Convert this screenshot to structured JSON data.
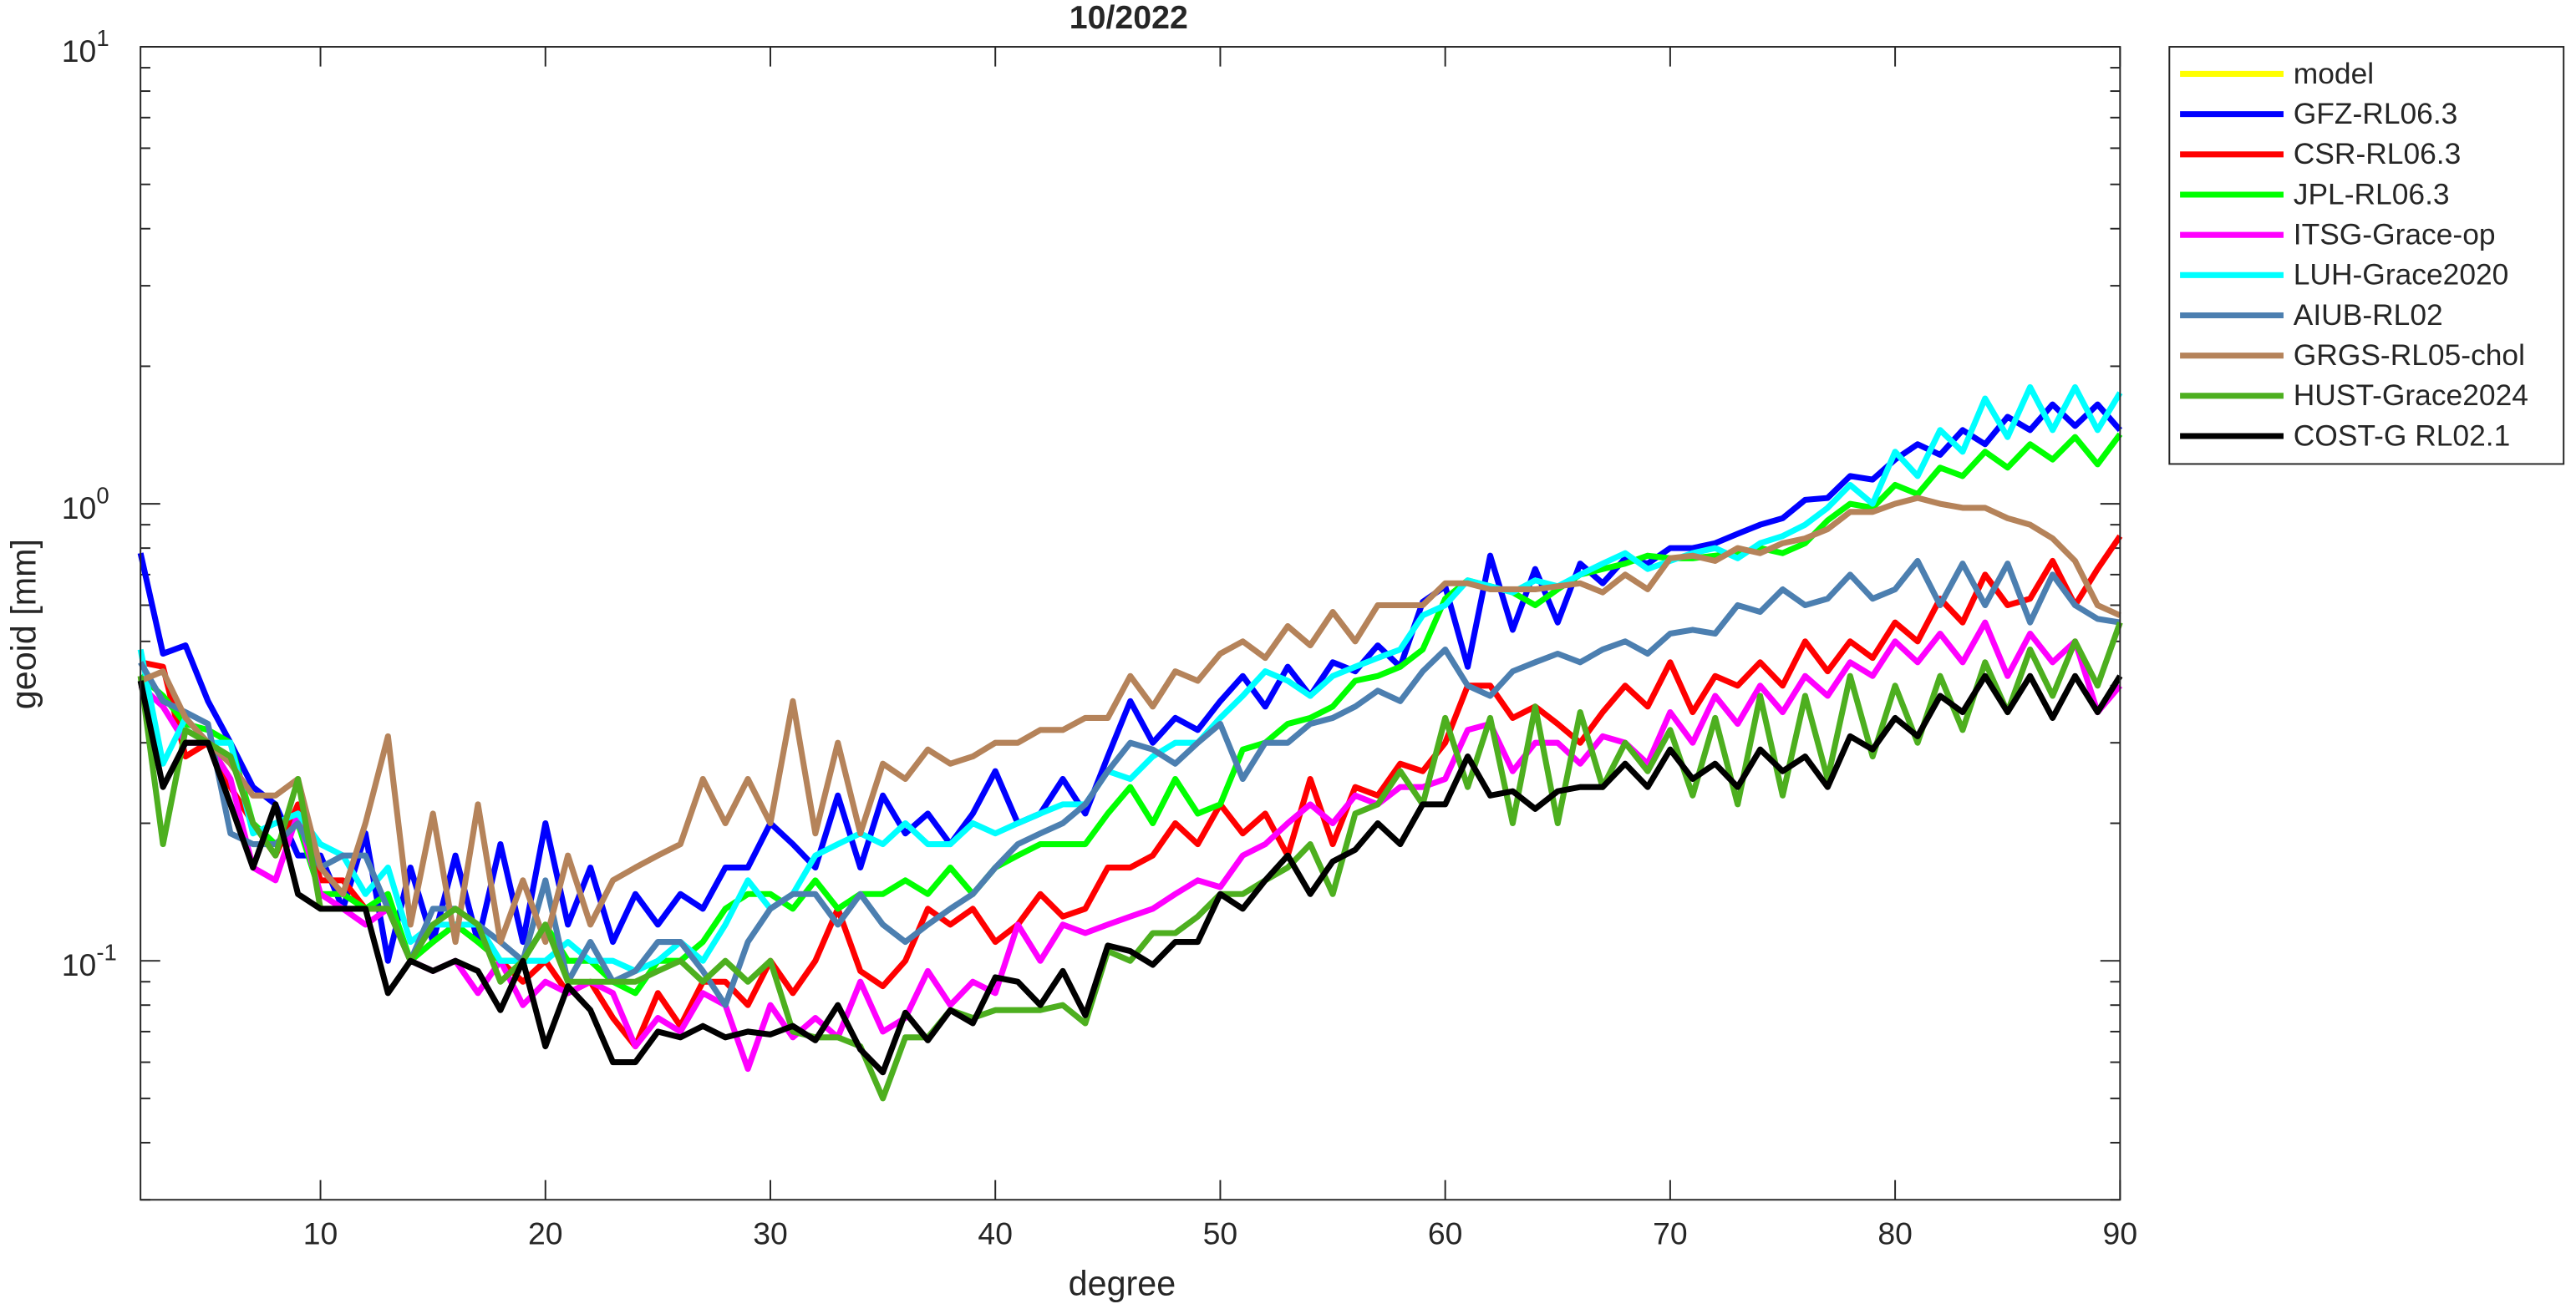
{
  "chart_data": {
    "type": "line",
    "title": "10/2022",
    "xlabel": "degree",
    "ylabel": "geoid [mm]",
    "log_y": true,
    "grid": false,
    "legend": "outside-right-top",
    "xlim": [
      2,
      90
    ],
    "xticks": [
      10,
      20,
      30,
      40,
      50,
      60,
      70,
      80,
      90
    ],
    "ylim": [
      0.03,
      10
    ],
    "yticks": [
      {
        "value": 10,
        "label": "10^1"
      },
      {
        "value": 1,
        "label": "10^0"
      },
      {
        "value": 0.1,
        "label": "10^-1"
      }
    ],
    "x": [
      2,
      3,
      4,
      5,
      6,
      7,
      8,
      9,
      10,
      11,
      12,
      13,
      14,
      15,
      16,
      17,
      18,
      19,
      20,
      21,
      22,
      23,
      24,
      25,
      26,
      27,
      28,
      29,
      30,
      31,
      32,
      33,
      34,
      35,
      36,
      37,
      38,
      39,
      40,
      41,
      42,
      43,
      44,
      45,
      46,
      47,
      48,
      49,
      50,
      51,
      52,
      53,
      54,
      55,
      56,
      57,
      58,
      59,
      60,
      61,
      62,
      63,
      64,
      65,
      66,
      67,
      68,
      69,
      70,
      71,
      72,
      73,
      74,
      75,
      76,
      77,
      78,
      79,
      80,
      81,
      82,
      83,
      84,
      85,
      86,
      87,
      88,
      89,
      90
    ],
    "series": [
      {
        "name": "model",
        "color": "#ffff00",
        "values": [
          null,
          null,
          null,
          null,
          null,
          null,
          null,
          null,
          null,
          null,
          null,
          null,
          null,
          null,
          null,
          null,
          null,
          null,
          null,
          null,
          null,
          null,
          null,
          null,
          null,
          null,
          null,
          null,
          null,
          null,
          null,
          null,
          null,
          null,
          null,
          null,
          null,
          null,
          null,
          null,
          null,
          null,
          null,
          null,
          null,
          null,
          null,
          null,
          null,
          null,
          null,
          null,
          null,
          null,
          null,
          null,
          null,
          null,
          null,
          null,
          null,
          null,
          null,
          null,
          null,
          null,
          null,
          null,
          null,
          null,
          null,
          null,
          null,
          null,
          null,
          null,
          null,
          null,
          null,
          null,
          null,
          null,
          null,
          null,
          null,
          null,
          null,
          null,
          null
        ]
      },
      {
        "name": "GFZ-RL06.3",
        "color": "#0000ff",
        "values": [
          0.78,
          0.47,
          0.49,
          0.37,
          0.3,
          0.24,
          0.22,
          0.17,
          0.17,
          0.13,
          0.19,
          0.1,
          0.16,
          0.11,
          0.17,
          0.11,
          0.18,
          0.11,
          0.2,
          0.12,
          0.16,
          0.11,
          0.14,
          0.12,
          0.14,
          0.13,
          0.16,
          0.16,
          0.2,
          0.18,
          0.16,
          0.23,
          0.16,
          0.23,
          0.19,
          0.21,
          0.18,
          0.21,
          0.26,
          0.2,
          0.21,
          0.25,
          0.21,
          0.28,
          0.37,
          0.3,
          0.34,
          0.32,
          0.37,
          0.42,
          0.36,
          0.44,
          0.38,
          0.45,
          0.43,
          0.49,
          0.44,
          0.61,
          0.66,
          0.44,
          0.77,
          0.53,
          0.72,
          0.55,
          0.74,
          0.67,
          0.76,
          0.74,
          0.8,
          0.8,
          0.82,
          0.86,
          0.9,
          0.93,
          1.02,
          1.03,
          1.15,
          1.13,
          1.25,
          1.35,
          1.28,
          1.45,
          1.35,
          1.55,
          1.45,
          1.65,
          1.48,
          1.65,
          1.45
        ]
      },
      {
        "name": "CSR-RL06.3",
        "color": "#ff0000",
        "values": [
          0.45,
          0.44,
          0.28,
          0.3,
          0.24,
          0.2,
          0.17,
          0.22,
          0.15,
          0.15,
          0.13,
          0.13,
          0.1,
          0.11,
          0.12,
          0.11,
          0.1,
          0.09,
          0.1,
          0.085,
          0.09,
          0.075,
          0.065,
          0.085,
          0.072,
          0.09,
          0.09,
          0.08,
          0.1,
          0.085,
          0.1,
          0.13,
          0.095,
          0.088,
          0.1,
          0.13,
          0.12,
          0.13,
          0.11,
          0.12,
          0.14,
          0.125,
          0.13,
          0.16,
          0.16,
          0.17,
          0.2,
          0.18,
          0.22,
          0.19,
          0.21,
          0.17,
          0.25,
          0.18,
          0.24,
          0.23,
          0.27,
          0.26,
          0.3,
          0.4,
          0.4,
          0.34,
          0.36,
          0.33,
          0.3,
          0.35,
          0.4,
          0.36,
          0.45,
          0.35,
          0.42,
          0.4,
          0.45,
          0.4,
          0.5,
          0.43,
          0.5,
          0.46,
          0.55,
          0.5,
          0.62,
          0.55,
          0.7,
          0.6,
          0.62,
          0.75,
          0.6,
          0.72,
          0.85
        ]
      },
      {
        "name": "JPL-RL06.3",
        "color": "#00ff00",
        "values": [
          0.42,
          0.38,
          0.33,
          0.32,
          0.3,
          0.2,
          0.18,
          0.2,
          0.14,
          0.14,
          0.13,
          0.14,
          0.1,
          0.11,
          0.12,
          0.11,
          0.1,
          0.1,
          0.12,
          0.1,
          0.1,
          0.09,
          0.085,
          0.1,
          0.1,
          0.11,
          0.13,
          0.14,
          0.14,
          0.13,
          0.15,
          0.13,
          0.14,
          0.14,
          0.15,
          0.14,
          0.16,
          0.14,
          0.16,
          0.17,
          0.18,
          0.18,
          0.18,
          0.21,
          0.24,
          0.2,
          0.25,
          0.21,
          0.22,
          0.29,
          0.3,
          0.33,
          0.34,
          0.36,
          0.41,
          0.42,
          0.44,
          0.48,
          0.62,
          0.68,
          0.66,
          0.64,
          0.6,
          0.65,
          0.7,
          0.72,
          0.74,
          0.77,
          0.76,
          0.76,
          0.77,
          0.78,
          0.8,
          0.78,
          0.82,
          0.92,
          1.0,
          0.98,
          1.1,
          1.05,
          1.2,
          1.15,
          1.3,
          1.2,
          1.35,
          1.25,
          1.4,
          1.22,
          1.42
        ]
      },
      {
        "name": "ITSG-Grace-op",
        "color": "#ff00ff",
        "values": [
          0.4,
          0.36,
          0.3,
          0.3,
          0.25,
          0.16,
          0.15,
          0.21,
          0.14,
          0.13,
          0.12,
          0.13,
          0.1,
          0.095,
          0.1,
          0.085,
          0.1,
          0.08,
          0.09,
          0.085,
          0.09,
          0.085,
          0.065,
          0.075,
          0.07,
          0.085,
          0.08,
          0.058,
          0.08,
          0.068,
          0.075,
          0.068,
          0.09,
          0.07,
          0.075,
          0.095,
          0.08,
          0.09,
          0.085,
          0.12,
          0.1,
          0.12,
          0.115,
          0.12,
          0.125,
          0.13,
          0.14,
          0.15,
          0.145,
          0.17,
          0.18,
          0.2,
          0.22,
          0.2,
          0.23,
          0.22,
          0.24,
          0.24,
          0.25,
          0.32,
          0.33,
          0.26,
          0.3,
          0.3,
          0.27,
          0.31,
          0.3,
          0.27,
          0.35,
          0.3,
          0.38,
          0.33,
          0.4,
          0.35,
          0.42,
          0.38,
          0.45,
          0.42,
          0.5,
          0.45,
          0.52,
          0.45,
          0.55,
          0.42,
          0.52,
          0.45,
          0.5,
          0.35,
          0.4
        ]
      },
      {
        "name": "LUH-Grace2020",
        "color": "#00ffff",
        "values": [
          0.48,
          0.27,
          0.34,
          0.3,
          0.3,
          0.19,
          0.2,
          0.21,
          0.18,
          0.17,
          0.14,
          0.16,
          0.11,
          0.12,
          0.12,
          0.12,
          0.1,
          0.1,
          0.1,
          0.11,
          0.1,
          0.1,
          0.095,
          0.1,
          0.11,
          0.1,
          0.12,
          0.15,
          0.13,
          0.14,
          0.17,
          0.18,
          0.19,
          0.18,
          0.2,
          0.18,
          0.18,
          0.2,
          0.19,
          0.2,
          0.21,
          0.22,
          0.22,
          0.26,
          0.25,
          0.28,
          0.3,
          0.3,
          0.34,
          0.38,
          0.43,
          0.41,
          0.38,
          0.42,
          0.44,
          0.46,
          0.48,
          0.57,
          0.6,
          0.68,
          0.66,
          0.64,
          0.68,
          0.66,
          0.7,
          0.74,
          0.78,
          0.72,
          0.75,
          0.78,
          0.8,
          0.76,
          0.82,
          0.85,
          0.9,
          0.98,
          1.1,
          1.0,
          1.3,
          1.15,
          1.45,
          1.3,
          1.7,
          1.4,
          1.8,
          1.45,
          1.8,
          1.45,
          1.75
        ]
      },
      {
        "name": "AIUB-RL02",
        "color": "#4c7fb0",
        "values": [
          0.45,
          0.37,
          0.35,
          0.33,
          0.19,
          0.18,
          0.18,
          0.2,
          0.16,
          0.17,
          0.17,
          0.13,
          0.1,
          0.13,
          0.13,
          0.12,
          0.11,
          0.1,
          0.15,
          0.09,
          0.11,
          0.09,
          0.095,
          0.11,
          0.11,
          0.095,
          0.08,
          0.11,
          0.13,
          0.14,
          0.14,
          0.12,
          0.14,
          0.12,
          0.11,
          0.12,
          0.13,
          0.14,
          0.16,
          0.18,
          0.19,
          0.2,
          0.22,
          0.26,
          0.3,
          0.29,
          0.27,
          0.3,
          0.33,
          0.25,
          0.3,
          0.3,
          0.33,
          0.34,
          0.36,
          0.39,
          0.37,
          0.43,
          0.48,
          0.4,
          0.38,
          0.43,
          0.45,
          0.47,
          0.45,
          0.48,
          0.5,
          0.47,
          0.52,
          0.53,
          0.52,
          0.6,
          0.58,
          0.65,
          0.6,
          0.62,
          0.7,
          0.62,
          0.65,
          0.75,
          0.6,
          0.74,
          0.6,
          0.74,
          0.55,
          0.7,
          0.6,
          0.56,
          0.55
        ]
      },
      {
        "name": "GRGS-RL05-chol",
        "color": "#b5835a",
        "values": [
          0.41,
          0.43,
          0.34,
          0.3,
          0.27,
          0.23,
          0.23,
          0.25,
          0.16,
          0.14,
          0.2,
          0.31,
          0.12,
          0.21,
          0.11,
          0.22,
          0.11,
          0.15,
          0.11,
          0.17,
          0.12,
          0.15,
          0.16,
          0.17,
          0.18,
          0.25,
          0.2,
          0.25,
          0.2,
          0.37,
          0.19,
          0.3,
          0.19,
          0.27,
          0.25,
          0.29,
          0.27,
          0.28,
          0.3,
          0.3,
          0.32,
          0.32,
          0.34,
          0.34,
          0.42,
          0.36,
          0.43,
          0.41,
          0.47,
          0.5,
          0.46,
          0.54,
          0.49,
          0.58,
          0.5,
          0.6,
          0.6,
          0.6,
          0.67,
          0.67,
          0.65,
          0.65,
          0.65,
          0.66,
          0.67,
          0.64,
          0.7,
          0.65,
          0.76,
          0.77,
          0.75,
          0.8,
          0.78,
          0.82,
          0.84,
          0.88,
          0.96,
          0.96,
          1.0,
          1.03,
          1.0,
          0.98,
          0.98,
          0.93,
          0.9,
          0.84,
          0.75,
          0.6,
          0.57
        ]
      },
      {
        "name": "HUST-Grace2024",
        "color": "#4daf1f",
        "values": [
          0.42,
          0.18,
          0.32,
          0.3,
          0.28,
          0.2,
          0.17,
          0.25,
          0.13,
          0.13,
          0.13,
          0.13,
          0.1,
          0.12,
          0.13,
          0.12,
          0.09,
          0.1,
          0.12,
          0.09,
          0.09,
          0.09,
          0.09,
          0.095,
          0.1,
          0.09,
          0.1,
          0.09,
          0.1,
          0.07,
          0.068,
          0.068,
          0.065,
          0.05,
          0.068,
          0.068,
          0.078,
          0.075,
          0.078,
          0.078,
          0.078,
          0.08,
          0.073,
          0.105,
          0.1,
          0.115,
          0.115,
          0.125,
          0.14,
          0.14,
          0.15,
          0.16,
          0.18,
          0.14,
          0.21,
          0.22,
          0.26,
          0.22,
          0.34,
          0.24,
          0.34,
          0.2,
          0.36,
          0.2,
          0.35,
          0.24,
          0.3,
          0.26,
          0.32,
          0.23,
          0.34,
          0.22,
          0.38,
          0.23,
          0.38,
          0.25,
          0.42,
          0.28,
          0.4,
          0.3,
          0.42,
          0.32,
          0.45,
          0.35,
          0.48,
          0.38,
          0.5,
          0.4,
          0.55
        ]
      },
      {
        "name": "COST-G RL02.1",
        "color": "#000000",
        "values": [
          0.41,
          0.24,
          0.3,
          0.3,
          0.22,
          0.16,
          0.22,
          0.14,
          0.13,
          0.13,
          0.13,
          0.085,
          0.1,
          0.095,
          0.1,
          0.095,
          0.078,
          0.1,
          0.065,
          0.088,
          0.078,
          0.06,
          0.06,
          0.07,
          0.068,
          0.072,
          0.068,
          0.07,
          0.069,
          0.072,
          0.067,
          0.08,
          0.064,
          0.057,
          0.077,
          0.067,
          0.078,
          0.073,
          0.092,
          0.09,
          0.08,
          0.095,
          0.076,
          0.108,
          0.105,
          0.098,
          0.11,
          0.11,
          0.14,
          0.13,
          0.15,
          0.17,
          0.14,
          0.165,
          0.175,
          0.2,
          0.18,
          0.22,
          0.22,
          0.28,
          0.23,
          0.235,
          0.215,
          0.235,
          0.24,
          0.24,
          0.27,
          0.24,
          0.29,
          0.25,
          0.27,
          0.24,
          0.29,
          0.26,
          0.28,
          0.24,
          0.31,
          0.29,
          0.34,
          0.31,
          0.38,
          0.35,
          0.42,
          0.35,
          0.42,
          0.34,
          0.42,
          0.35,
          0.42
        ]
      }
    ]
  }
}
